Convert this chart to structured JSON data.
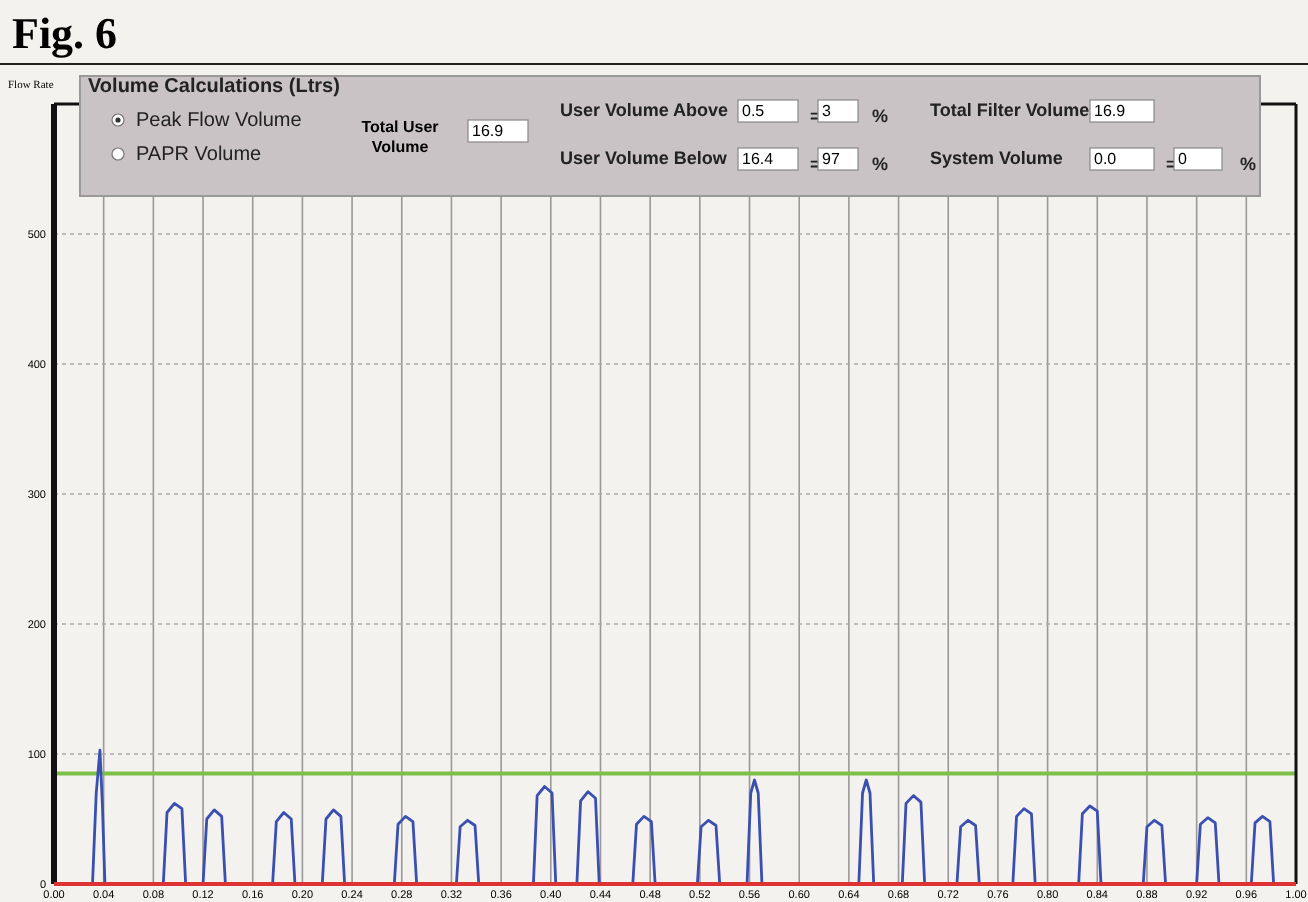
{
  "chart_data": {
    "type": "line",
    "title": "Fig. 6",
    "ylabel": "Flow Rate",
    "xlim": [
      0,
      1
    ],
    "xticks": [
      {
        "value": 0,
        "label": "0.00"
      },
      {
        "value": 0.04,
        "label": "0.04"
      },
      {
        "value": 0.08,
        "label": "0.08"
      },
      {
        "value": 0.12,
        "label": "0.12"
      },
      {
        "value": 0.16,
        "label": "0.16"
      },
      {
        "value": 0.2,
        "label": "0.20"
      },
      {
        "value": 0.24,
        "label": "0.24"
      },
      {
        "value": 0.28,
        "label": "0.28"
      },
      {
        "value": 0.32,
        "label": "0.32"
      },
      {
        "value": 0.36,
        "label": "0.36"
      },
      {
        "value": 0.4,
        "label": "0.40"
      },
      {
        "value": 0.44,
        "label": "0.44"
      },
      {
        "value": 0.48,
        "label": "0.48"
      },
      {
        "value": 0.52,
        "label": "0.52"
      },
      {
        "value": 0.56,
        "label": "0.56"
      },
      {
        "value": 0.6,
        "label": "0.60"
      },
      {
        "value": 0.64,
        "label": "0.64"
      },
      {
        "value": 0.68,
        "label": "0.68"
      },
      {
        "value": 0.72,
        "label": "0.72"
      },
      {
        "value": 0.76,
        "label": "0.76"
      },
      {
        "value": 0.8,
        "label": "0.80"
      },
      {
        "value": 0.84,
        "label": "0.84"
      },
      {
        "value": 0.88,
        "label": "0.88"
      },
      {
        "value": 0.92,
        "label": "0.92"
      },
      {
        "value": 0.96,
        "label": "0.96"
      },
      {
        "value": 1,
        "label": "1.00"
      }
    ],
    "ylim": [
      0,
      600
    ],
    "yticks": [
      0,
      100,
      200,
      300,
      400,
      500
    ],
    "grid": true,
    "ref_lines": [
      {
        "axis": "y",
        "value": 85,
        "color": "#7cc04a"
      }
    ],
    "series": [
      {
        "color": "#3a4fb0",
        "x": [
          0,
          0.031,
          0.034,
          0.037,
          0.039,
          0.041,
          0.088,
          0.091,
          0.097,
          0.103,
          0.106,
          0.12,
          0.123,
          0.129,
          0.135,
          0.138,
          0.176,
          0.179,
          0.185,
          0.191,
          0.194,
          0.216,
          0.219,
          0.225,
          0.231,
          0.234,
          0.274,
          0.277,
          0.283,
          0.289,
          0.292,
          0.324,
          0.327,
          0.333,
          0.339,
          0.342,
          0.386,
          0.389,
          0.395,
          0.401,
          0.404,
          0.421,
          0.424,
          0.43,
          0.436,
          0.439,
          0.466,
          0.469,
          0.475,
          0.481,
          0.484,
          0.518,
          0.521,
          0.527,
          0.533,
          0.536,
          0.558,
          0.561,
          0.564,
          0.567,
          0.57,
          0.648,
          0.651,
          0.654,
          0.657,
          0.66,
          0.683,
          0.686,
          0.692,
          0.698,
          0.701,
          0.727,
          0.73,
          0.736,
          0.742,
          0.745,
          0.772,
          0.775,
          0.781,
          0.787,
          0.79,
          0.825,
          0.828,
          0.834,
          0.84,
          0.843,
          0.877,
          0.88,
          0.886,
          0.892,
          0.895,
          0.92,
          0.923,
          0.929,
          0.935,
          0.938,
          0.964,
          0.967,
          0.973,
          0.979,
          0.982,
          1
        ],
        "values": [
          0,
          0,
          70,
          103,
          60,
          0,
          0,
          55,
          62,
          58,
          0,
          0,
          50,
          57,
          52,
          0,
          0,
          48,
          55,
          50,
          0,
          0,
          50,
          57,
          52,
          0,
          0,
          46,
          52,
          48,
          0,
          0,
          44,
          49,
          45,
          0,
          0,
          68,
          75,
          70,
          0,
          0,
          64,
          71,
          66,
          0,
          0,
          46,
          52,
          48,
          0,
          0,
          44,
          49,
          45,
          0,
          0,
          70,
          80,
          70,
          0,
          0,
          70,
          80,
          70,
          0,
          0,
          62,
          68,
          63,
          0,
          0,
          44,
          49,
          45,
          0,
          0,
          52,
          58,
          54,
          0,
          0,
          54,
          60,
          56,
          0,
          0,
          44,
          49,
          45,
          0,
          0,
          46,
          51,
          47,
          0,
          0,
          47,
          52,
          48,
          0,
          0
        ]
      }
    ],
    "annotations": [
      "Volume Calculations (Ltrs)",
      "Peak Flow Volume",
      "PAPR Volume",
      "Total User Volume",
      "16.9",
      "User Volume Above",
      "0.5",
      "=",
      "3",
      "%",
      "User Volume Below",
      "16.4",
      "=",
      "97",
      "%",
      "Total Filter Volume",
      "16.9",
      "System Volume",
      "0.0",
      "=",
      "0",
      "%"
    ]
  }
}
